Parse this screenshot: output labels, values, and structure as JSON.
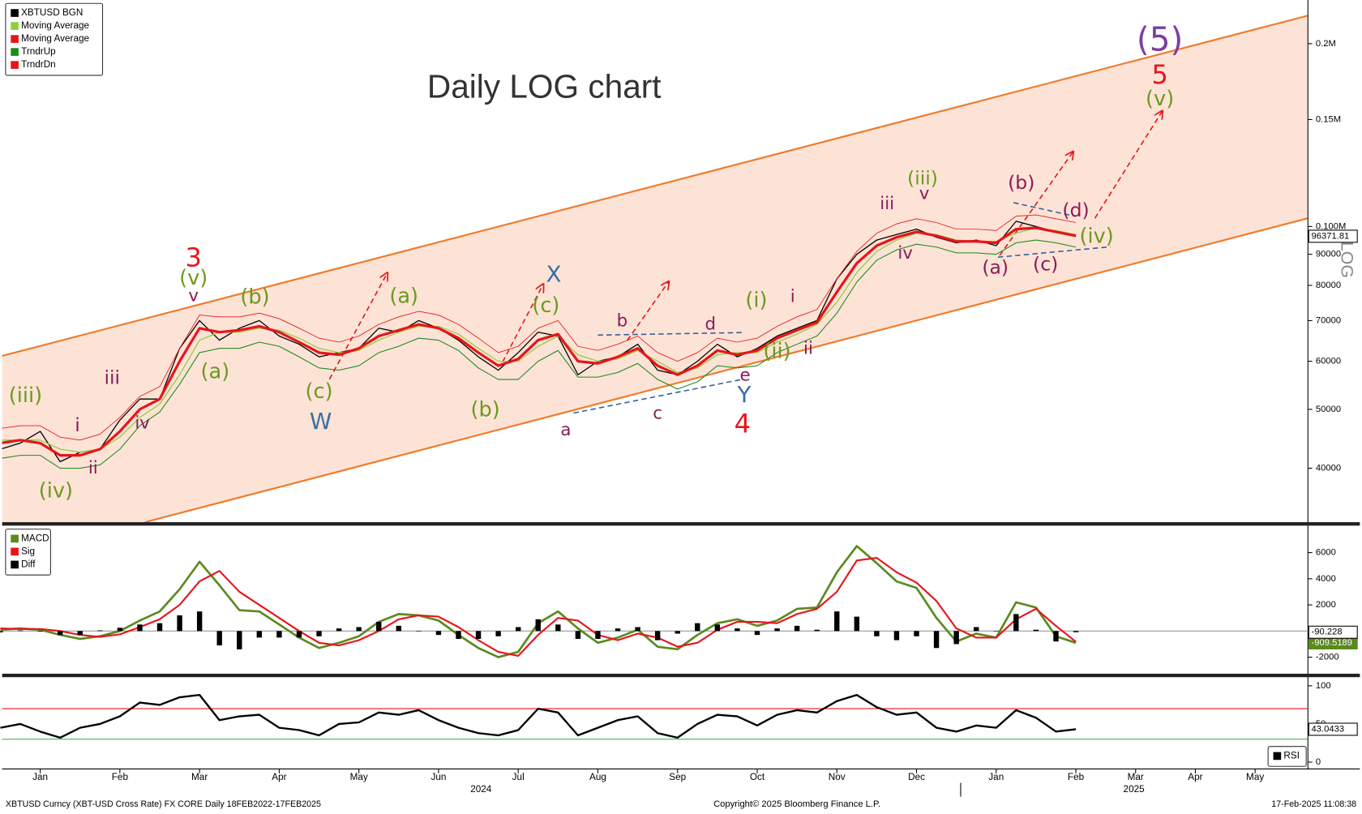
{
  "chart_data": [
    {
      "type": "line",
      "title": "Daily LOG chart",
      "y_axis_label": "LOG",
      "log_scale": true,
      "legend": "upper left",
      "categories": [
        null,
        null,
        "Jan",
        null,
        null,
        null,
        "Feb",
        null,
        null,
        null,
        "Mar",
        null,
        null,
        null,
        "Apr",
        null,
        null,
        null,
        "May",
        null,
        null,
        null,
        "Jun",
        null,
        null,
        null,
        "Jul",
        null,
        null,
        null,
        "Aug",
        null,
        null,
        null,
        "Sep",
        null,
        null,
        null,
        "Oct",
        null,
        null,
        null,
        "Nov",
        null,
        null,
        null,
        "Dec",
        null,
        null,
        null,
        "Jan",
        null,
        null,
        null,
        "Feb",
        null,
        null,
        "Mar",
        null,
        null,
        "Apr",
        null,
        null,
        "May",
        null,
        null
      ],
      "year_labels": [
        "2024",
        "2025"
      ],
      "ylim": [
        32600,
        236000
      ],
      "yticks": [
        40000,
        50000,
        60000,
        70000,
        80000,
        90000,
        {
          "value": 100000,
          "label": "0.100M"
        },
        {
          "value": 150000,
          "label": "0.15M"
        },
        {
          "value": 200000,
          "label": "0.2M"
        }
      ],
      "series": [
        {
          "name": "XBTUSD BGN",
          "color": "#000000",
          "width": 1.2,
          "tag": true,
          "values": [
            43000,
            44000,
            46000,
            41000,
            42500,
            43000,
            48000,
            52000,
            52000,
            63000,
            70000,
            65000,
            68000,
            70000,
            66000,
            64000,
            61000,
            62000,
            63000,
            68000,
            67000,
            70000,
            68000,
            65000,
            61000,
            58000,
            62000,
            67000,
            66000,
            57000,
            60000,
            61000,
            64000,
            58000,
            57000,
            60000,
            64000,
            61000,
            63000,
            66000,
            68000,
            70000,
            82000,
            90000,
            95000,
            97000,
            99000,
            96000,
            94000,
            95000,
            93000,
            102000,
            100000,
            98000,
            96371.81,
            null,
            null,
            null,
            null,
            null,
            null,
            null,
            null,
            null,
            null,
            null
          ]
        },
        {
          "name": "Moving Average",
          "color": "#8fce3f",
          "width": 1.2,
          "values": [
            44500,
            44500,
            44500,
            43000,
            42500,
            43000,
            45000,
            48500,
            51000,
            57000,
            65000,
            67000,
            67000,
            68000,
            67500,
            65500,
            63000,
            62000,
            62500,
            65000,
            67000,
            68500,
            68500,
            66500,
            63000,
            60000,
            60000,
            63500,
            66000,
            61500,
            60000,
            60500,
            62500,
            60000,
            57500,
            58500,
            61500,
            62000,
            62000,
            64500,
            66500,
            69000,
            75000,
            84000,
            91000,
            95000,
            97500,
            97000,
            95000,
            94500,
            94500,
            97500,
            99500,
            98500,
            97000,
            null,
            null,
            null,
            null,
            null,
            null,
            null,
            null,
            null,
            null,
            null
          ]
        },
        {
          "name": "Moving Average",
          "color": "#e8141a",
          "width": 3,
          "values": [
            44000,
            44500,
            44000,
            42000,
            42000,
            43000,
            46000,
            50000,
            52000,
            60000,
            68000,
            67000,
            67500,
            68500,
            67000,
            64500,
            62000,
            61500,
            63000,
            66000,
            67500,
            69000,
            68000,
            65500,
            62000,
            59000,
            60500,
            65000,
            66500,
            60000,
            59500,
            61000,
            63000,
            59000,
            57000,
            59000,
            62500,
            61500,
            62500,
            65500,
            67500,
            69500,
            78000,
            87000,
            93000,
            96000,
            98000,
            96500,
            94500,
            94500,
            94000,
            99000,
            99500,
            98000,
            96500,
            null,
            null,
            null,
            null,
            null,
            null,
            null,
            null,
            null,
            null,
            null
          ]
        },
        {
          "name": "TrndrUp",
          "color": "#1e8a1e",
          "width": 1,
          "values": [
            41500,
            42000,
            42000,
            40000,
            40000,
            40500,
            43000,
            47000,
            49500,
            55000,
            62000,
            63000,
            63000,
            64500,
            63500,
            61000,
            58500,
            58000,
            59000,
            62000,
            63500,
            65500,
            65000,
            62500,
            58500,
            56000,
            56000,
            60000,
            62500,
            56500,
            56500,
            57500,
            59500,
            56000,
            54000,
            55500,
            59000,
            58500,
            59000,
            62000,
            64000,
            66000,
            72000,
            81000,
            88000,
            91500,
            93500,
            92500,
            90500,
            90500,
            90000,
            94000,
            95000,
            94000,
            92500,
            null,
            null,
            null,
            null,
            null,
            null,
            null,
            null,
            null,
            null,
            null
          ]
        },
        {
          "name": "TrndrDn",
          "color": "#e8141a",
          "width": 0.8,
          "values": [
            46500,
            47000,
            47000,
            45000,
            44500,
            45500,
            48500,
            52500,
            54500,
            63000,
            71500,
            71000,
            71000,
            72000,
            70500,
            68000,
            65500,
            64500,
            66000,
            69000,
            71000,
            72500,
            71500,
            69000,
            65500,
            62000,
            63500,
            68000,
            70000,
            63500,
            62500,
            64000,
            66000,
            62000,
            60000,
            62000,
            65500,
            64500,
            65500,
            68500,
            71000,
            73000,
            82000,
            91000,
            97500,
            101000,
            103000,
            101500,
            99000,
            99000,
            98500,
            104000,
            104500,
            103000,
            101500,
            null,
            null,
            null,
            null,
            null,
            null,
            null,
            null,
            null,
            null,
            null
          ]
        }
      ],
      "annotations": [
        {
          "text": "(5)",
          "color": "#7b3fa0"
        },
        {
          "text": "5",
          "color": "#e8141a"
        },
        {
          "text": "(v)",
          "color": "#6b9a1f"
        },
        {
          "text": "(iii)",
          "color": "#6b9a1f"
        },
        {
          "text": "iii",
          "color": "#8b1a5a"
        },
        {
          "text": "v",
          "color": "#8b1a5a"
        },
        {
          "text": "iv",
          "color": "#8b1a5a"
        },
        {
          "text": "(b)",
          "color": "#8b1a5a"
        },
        {
          "text": "(d)",
          "color": "#8b1a5a"
        },
        {
          "text": "(iv)",
          "color": "#6b9a1f"
        },
        {
          "text": "(a)",
          "color": "#8b1a5a"
        },
        {
          "text": "(c)",
          "color": "#8b1a5a"
        },
        {
          "text": "3",
          "color": "#e8141a"
        },
        {
          "text": "(v)",
          "color": "#6b9a1f"
        },
        {
          "text": "v",
          "color": "#8b1a5a"
        },
        {
          "text": "(b)",
          "color": "#6b9a1f"
        },
        {
          "text": "(a)",
          "color": "#6b9a1f"
        },
        {
          "text": "iii",
          "color": "#8b1a5a"
        },
        {
          "text": "iv",
          "color": "#8b1a5a"
        },
        {
          "text": "i",
          "color": "#8b1a5a"
        },
        {
          "text": "ii",
          "color": "#8b1a5a"
        },
        {
          "text": "(iii)",
          "color": "#6b9a1f"
        },
        {
          "text": "(iv)",
          "color": "#6b9a1f"
        },
        {
          "text": "(c)",
          "color": "#6b9a1f"
        },
        {
          "text": "W",
          "color": "#3a6ea5"
        },
        {
          "text": "(a)",
          "color": "#6b9a1f"
        },
        {
          "text": "(b)",
          "color": "#6b9a1f"
        },
        {
          "text": "(c)",
          "color": "#6b9a1f"
        },
        {
          "text": "X",
          "color": "#3a6ea5"
        },
        {
          "text": "a",
          "color": "#8b1a5a"
        },
        {
          "text": "b",
          "color": "#8b1a5a"
        },
        {
          "text": "c",
          "color": "#8b1a5a"
        },
        {
          "text": "d",
          "color": "#8b1a5a"
        },
        {
          "text": "e",
          "color": "#8b1a5a"
        },
        {
          "text": "Y",
          "color": "#3a6ea5"
        },
        {
          "text": "4",
          "color": "#e8141a"
        },
        {
          "text": "(i)",
          "color": "#6b9a1f"
        },
        {
          "text": "(ii)",
          "color": "#6b9a1f"
        },
        {
          "text": "i",
          "color": "#8b1a5a"
        },
        {
          "text": "ii",
          "color": "#8b1a5a"
        }
      ]
    },
    {
      "type": "line",
      "legend": "upper left",
      "ylim": [
        -3267,
        8067
      ],
      "yticks": [
        -2000,
        2000,
        4000,
        6000
      ],
      "levels": [
        0
      ],
      "level_colors": [
        "#9a9a9a"
      ],
      "series": [
        {
          "name": "MACD",
          "color": "#5a8a1e",
          "width": 2.5,
          "tag": true,
          "values": [
            100,
            200,
            100,
            -300,
            -600,
            -400,
            0,
            800,
            1500,
            3200,
            5300,
            3500,
            1600,
            1500,
            500,
            -500,
            -1300,
            -900,
            -400,
            700,
            1300,
            1200,
            800,
            -300,
            -1300,
            -2000,
            -1600,
            600,
            1500,
            200,
            -900,
            -500,
            100,
            -1200,
            -1400,
            -300,
            600,
            900,
            400,
            800,
            1700,
            1800,
            4500,
            6500,
            5200,
            3800,
            3300,
            1000,
            -800,
            -200,
            -500,
            2200,
            1800,
            -400,
            -909.5189,
            null,
            null,
            null,
            null,
            null,
            null,
            null,
            null,
            null,
            null,
            null
          ]
        },
        {
          "name": "Sig",
          "color": "#e8141a",
          "width": 2,
          "values": [
            200,
            150,
            150,
            0,
            -300,
            -450,
            -250,
            300,
            900,
            2000,
            3800,
            4600,
            3000,
            2000,
            1000,
            0,
            -900,
            -1100,
            -700,
            0,
            900,
            1200,
            1100,
            300,
            -700,
            -1600,
            -1900,
            -300,
            1000,
            800,
            -300,
            -700,
            -200,
            -500,
            -1200,
            -900,
            100,
            700,
            700,
            600,
            1300,
            1700,
            3000,
            5400,
            5600,
            4500,
            3700,
            2300,
            200,
            -500,
            -500,
            900,
            1700,
            400,
            -819.29,
            null,
            null,
            null,
            null,
            null,
            null,
            null,
            null,
            null,
            null,
            null
          ]
        },
        {
          "name": "Diff",
          "color": "#000000",
          "style": "bars",
          "tag": true,
          "values": [
            -100,
            50,
            -50,
            -300,
            -300,
            50,
            250,
            500,
            600,
            1200,
            1500,
            -1100,
            -1400,
            -500,
            -500,
            -500,
            -400,
            200,
            300,
            700,
            400,
            0,
            -300,
            -600,
            -600,
            -400,
            300,
            900,
            500,
            -600,
            -600,
            200,
            300,
            -700,
            -200,
            600,
            500,
            200,
            -300,
            200,
            400,
            100,
            1500,
            1100,
            -400,
            -700,
            -400,
            -1300,
            -1000,
            300,
            0,
            1300,
            100,
            -800,
            -90.228,
            null,
            null,
            null,
            null,
            null,
            null,
            null,
            null,
            null,
            null,
            null
          ]
        }
      ]
    },
    {
      "type": "line",
      "legend": "lower right",
      "ylim": [
        -9,
        109
      ],
      "yticks": [
        0,
        50,
        100
      ],
      "levels": [
        70,
        30
      ],
      "level_colors": [
        "#e8141a",
        "#2fae2f"
      ],
      "series": [
        {
          "name": "RSI",
          "color": "#000000",
          "width": 2.2,
          "tag": true,
          "values": [
            45,
            50,
            40,
            32,
            45,
            50,
            60,
            78,
            75,
            85,
            88,
            55,
            60,
            62,
            45,
            42,
            35,
            50,
            52,
            65,
            62,
            68,
            55,
            45,
            38,
            35,
            42,
            70,
            65,
            35,
            45,
            55,
            60,
            38,
            32,
            50,
            62,
            60,
            48,
            62,
            68,
            65,
            80,
            88,
            72,
            62,
            65,
            45,
            40,
            48,
            45,
            68,
            58,
            40,
            43.0433,
            null,
            null,
            null,
            null,
            null,
            null,
            null,
            null,
            null,
            null,
            null
          ]
        }
      ]
    }
  ],
  "footer": {
    "left": "XBTUSD Curncy (XBT-USD Cross Rate) FX CORE  Daily 18FEB2022-17FEB2025",
    "center": "Copyright© 2025 Bloomberg Finance L.P.",
    "right": "17-Feb-2025 11:08:38"
  }
}
